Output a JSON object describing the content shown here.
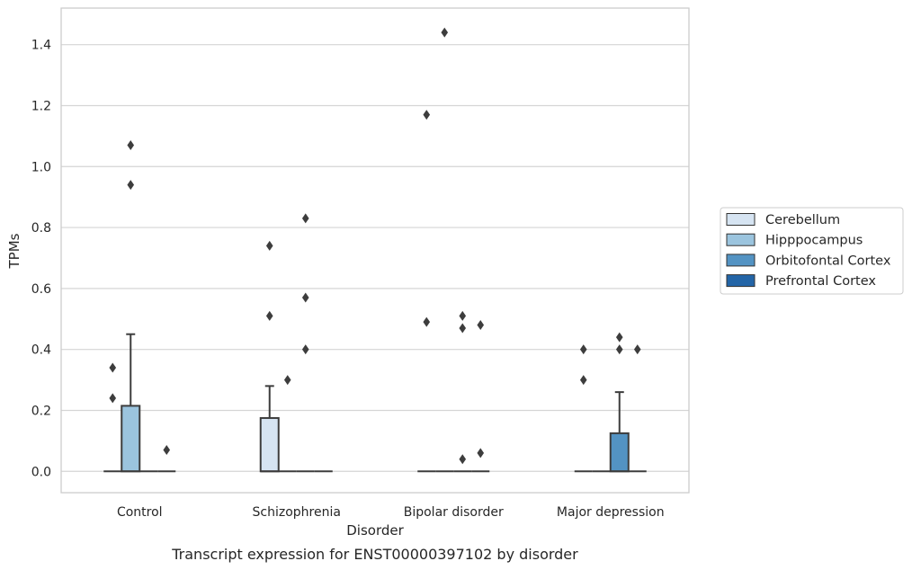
{
  "caption": "Transcript expression for ENST00000397102 by disorder",
  "colors": {
    "Cerebellum": "#d6e4f2",
    "Hipppocampus": "#9bc4de",
    "Orbitofontal Cortex": "#5393c3",
    "Prefrontal Cortex": "#2365a7"
  },
  "chart_data": {
    "type": "box",
    "xlabel": "Disorder",
    "ylabel": "TPMs",
    "categories": [
      "Control",
      "Schizophrenia",
      "Bipolar disorder",
      "Major depression"
    ],
    "ylim": [
      -0.07,
      1.52
    ],
    "yticks": [
      "0.0",
      "0.2",
      "0.4",
      "0.6",
      "0.8",
      "1.0",
      "1.2",
      "1.4"
    ],
    "grid": true,
    "legend_position": "right",
    "series": [
      {
        "name": "Cerebellum",
        "boxes": [
          {
            "q1": 0,
            "median": 0,
            "q3": 0,
            "whisker_low": 0,
            "whisker_high": 0,
            "outliers": [
              0.24,
              0.34
            ]
          },
          {
            "q1": 0,
            "median": 0,
            "q3": 0.175,
            "whisker_low": 0,
            "whisker_high": 0.28,
            "outliers": [
              0.51,
              0.74
            ]
          },
          {
            "q1": 0,
            "median": 0,
            "q3": 0,
            "whisker_low": 0,
            "whisker_high": 0,
            "outliers": [
              0.49,
              1.17
            ]
          },
          {
            "q1": 0,
            "median": 0,
            "q3": 0,
            "whisker_low": 0,
            "whisker_high": 0,
            "outliers": [
              0.3,
              0.4
            ]
          }
        ]
      },
      {
        "name": "Hipppocampus",
        "boxes": [
          {
            "q1": 0,
            "median": 0,
            "q3": 0.215,
            "whisker_low": 0,
            "whisker_high": 0.45,
            "outliers": [
              0.94,
              1.07
            ]
          },
          {
            "q1": 0,
            "median": 0,
            "q3": 0,
            "whisker_low": 0,
            "whisker_high": 0,
            "outliers": [
              0.3
            ]
          },
          {
            "q1": 0,
            "median": 0,
            "q3": 0,
            "whisker_low": 0,
            "whisker_high": 0,
            "outliers": [
              1.44
            ]
          },
          {
            "q1": 0,
            "median": 0,
            "q3": 0,
            "whisker_low": 0,
            "whisker_high": 0,
            "outliers": []
          }
        ]
      },
      {
        "name": "Orbitofontal Cortex",
        "boxes": [
          {
            "q1": 0,
            "median": 0,
            "q3": 0,
            "whisker_low": 0,
            "whisker_high": 0,
            "outliers": []
          },
          {
            "q1": 0,
            "median": 0,
            "q3": 0,
            "whisker_low": 0,
            "whisker_high": 0,
            "outliers": [
              0.4,
              0.57,
              0.83
            ]
          },
          {
            "q1": 0,
            "median": 0,
            "q3": 0,
            "whisker_low": 0,
            "whisker_high": 0,
            "outliers": [
              0.04,
              0.47,
              0.51
            ]
          },
          {
            "q1": 0,
            "median": 0,
            "q3": 0.125,
            "whisker_low": 0,
            "whisker_high": 0.26,
            "outliers": [
              0.4,
              0.44
            ]
          }
        ]
      },
      {
        "name": "Prefrontal Cortex",
        "boxes": [
          {
            "q1": 0,
            "median": 0,
            "q3": 0,
            "whisker_low": 0,
            "whisker_high": 0,
            "outliers": [
              0.07
            ]
          },
          {
            "q1": 0,
            "median": 0,
            "q3": 0,
            "whisker_low": 0,
            "whisker_high": 0,
            "outliers": []
          },
          {
            "q1": 0,
            "median": 0,
            "q3": 0,
            "whisker_low": 0,
            "whisker_high": 0,
            "outliers": [
              0.06,
              0.48
            ]
          },
          {
            "q1": 0,
            "median": 0,
            "q3": 0,
            "whisker_low": 0,
            "whisker_high": 0,
            "outliers": [
              0.4
            ]
          }
        ]
      }
    ]
  }
}
